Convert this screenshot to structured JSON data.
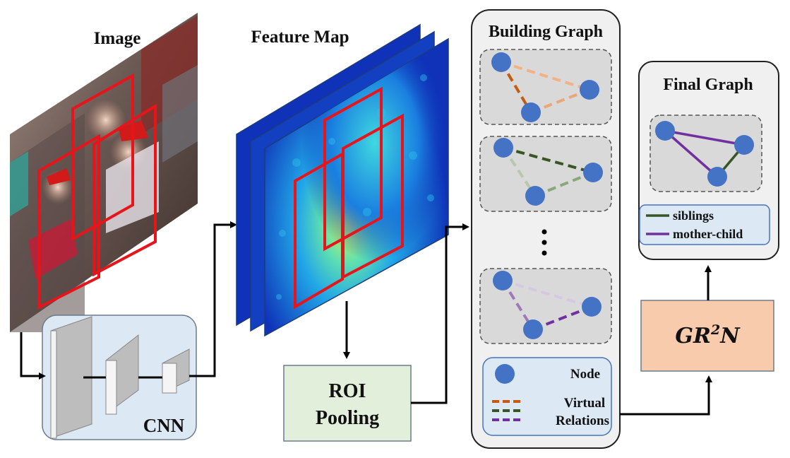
{
  "image_panel": {
    "title": "Image"
  },
  "feature_panel": {
    "title": "Feature Map"
  },
  "cnn": {
    "label": "CNN"
  },
  "roi_pooling": {
    "line1": "ROI",
    "line2": "Pooling"
  },
  "building_graph": {
    "title": "Building Graph",
    "ellipsis": "⋮"
  },
  "legend": {
    "node": "Node",
    "virtual_line1": "Virtual",
    "virtual_line2": "Relations"
  },
  "grn": {
    "base": "GR",
    "sup": "2",
    "tail": "N"
  },
  "final_graph": {
    "title": "Final Graph",
    "legend_siblings": "siblings",
    "legend_mother_child": "mother-child"
  },
  "colors": {
    "node": "#4472c4",
    "brown": "#c55a11",
    "green": "#375623",
    "purple": "#7030a0",
    "red_box": "#e8141a",
    "grn_fill": "#f8cbad",
    "roi_fill": "#e2efda",
    "cnn_fill": "#dde8f5"
  }
}
